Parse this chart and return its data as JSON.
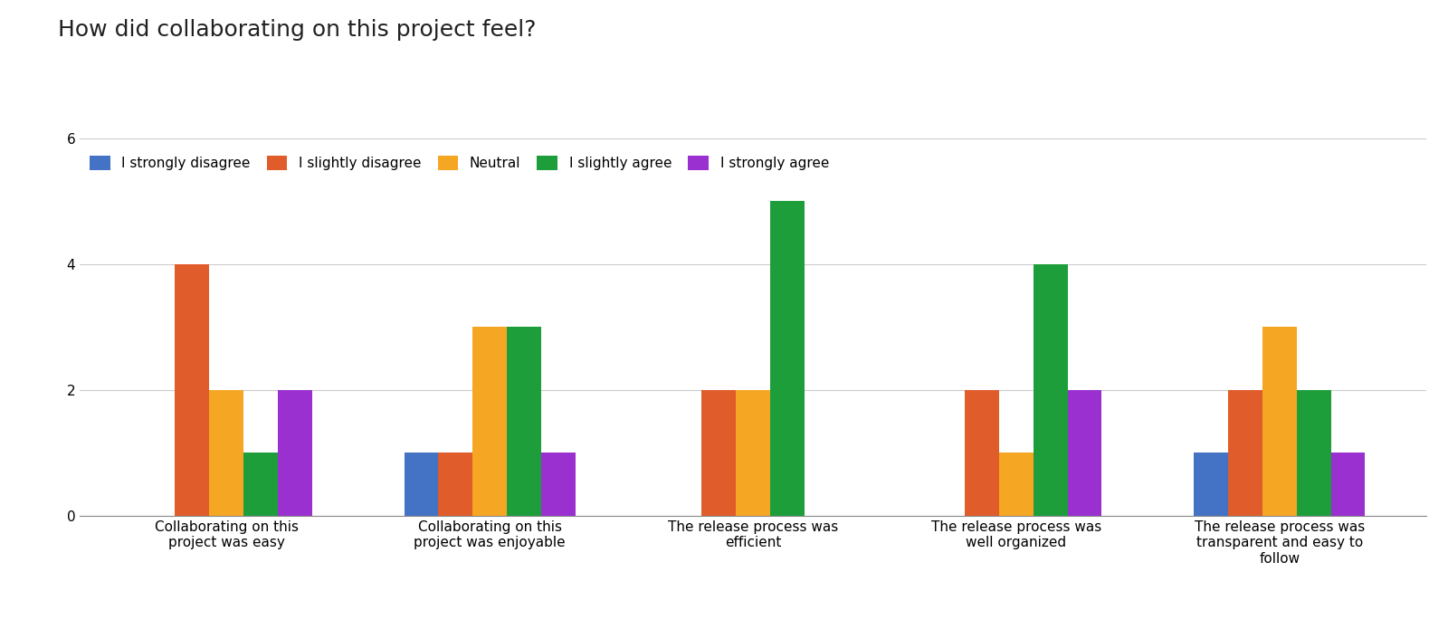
{
  "title": "How did collaborating on this project feel?",
  "categories": [
    "Collaborating on this\nproject was easy",
    "Collaborating on this\nproject was enjoyable",
    "The release process was\nefficient",
    "The release process was\nwell organized",
    "The release process was\ntransparent and easy to\nfollow"
  ],
  "legend_labels": [
    "I strongly disagree",
    "I slightly disagree",
    "Neutral",
    "I slightly agree",
    "I strongly agree"
  ],
  "colors": [
    "#4472c4",
    "#e05c2a",
    "#f5a623",
    "#1e9e3b",
    "#9b30d0"
  ],
  "data": [
    [
      0,
      4,
      2,
      1,
      2
    ],
    [
      1,
      1,
      3,
      3,
      1
    ],
    [
      0,
      2,
      2,
      5,
      0
    ],
    [
      0,
      2,
      1,
      4,
      2
    ],
    [
      1,
      2,
      3,
      2,
      1
    ]
  ],
  "ylim": [
    0,
    6
  ],
  "yticks": [
    0,
    2,
    4,
    6
  ],
  "background_color": "#ffffff",
  "title_fontsize": 18,
  "tick_fontsize": 11,
  "legend_fontsize": 11,
  "bar_width": 0.13,
  "grid_color": "#cccccc"
}
